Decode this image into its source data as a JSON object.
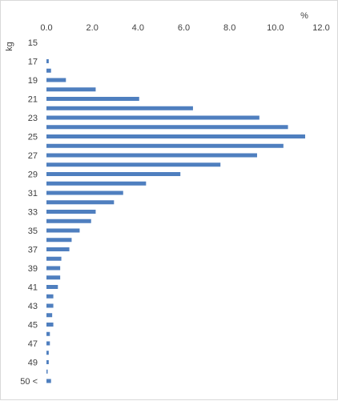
{
  "chart_data": {
    "type": "bar",
    "orientation": "horizontal",
    "title": "",
    "xlabel": "%",
    "ylabel": "kg",
    "xlim": [
      0,
      12
    ],
    "x_ticks": [
      "0.0",
      "2.0",
      "4.0",
      "6.0",
      "8.0",
      "10.0",
      "12.0"
    ],
    "x_axis_position": "top",
    "grid": false,
    "bar_color": "#4f7fbf",
    "categories": [
      "15",
      "16",
      "17",
      "18",
      "19",
      "20",
      "21",
      "22",
      "23",
      "24",
      "25",
      "26",
      "27",
      "28",
      "29",
      "30",
      "31",
      "32",
      "33",
      "34",
      "35",
      "36",
      "37",
      "38",
      "39",
      "40",
      "41",
      "42",
      "43",
      "44",
      "45",
      "46",
      "47",
      "48",
      "49",
      "50",
      "50 <"
    ],
    "category_labels": [
      "15",
      "",
      "17",
      "",
      "19",
      "",
      "21",
      "",
      "23",
      "",
      "25",
      "",
      "27",
      "",
      "29",
      "",
      "31",
      "",
      "33",
      "",
      "35",
      "",
      "37",
      "",
      "39",
      "",
      "41",
      "",
      "43",
      "",
      "45",
      "",
      "47",
      "",
      "49",
      "",
      "50 <"
    ],
    "values": [
      0.0,
      0.0,
      0.1,
      0.2,
      0.85,
      2.15,
      4.05,
      6.4,
      9.3,
      10.55,
      11.3,
      10.35,
      9.2,
      7.6,
      5.85,
      4.35,
      3.35,
      2.95,
      2.15,
      1.95,
      1.45,
      1.1,
      1.0,
      0.65,
      0.6,
      0.6,
      0.5,
      0.3,
      0.3,
      0.25,
      0.3,
      0.15,
      0.15,
      0.1,
      0.1,
      0.05,
      0.2
    ]
  }
}
